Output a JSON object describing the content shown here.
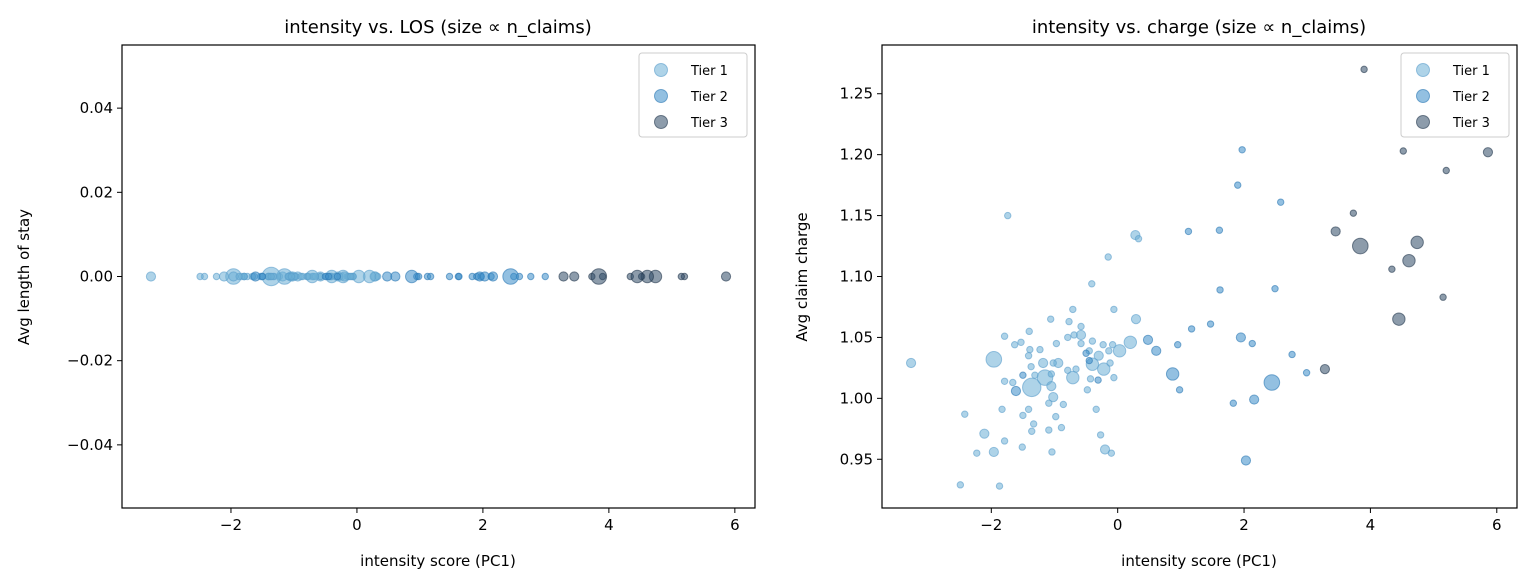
{
  "chart_data": [
    {
      "type": "scatter",
      "title": "intensity vs. LOS (size ∝ n_claims)",
      "xlabel": "intensity score (PC1)",
      "ylabel": "Avg length of stay",
      "xlim": [
        -3.73,
        6.32
      ],
      "ylim": [
        -0.055,
        0.055
      ],
      "xticks": [
        "−2",
        "0",
        "2",
        "4",
        "6"
      ],
      "xtick_values": [
        -2,
        0,
        2,
        4,
        6
      ],
      "yticks": [
        "−0.04",
        "−0.02",
        "0.00",
        "0.02",
        "0.04"
      ],
      "ytick_values": [
        -0.04,
        -0.02,
        0,
        0.02,
        0.04
      ],
      "legend_position": "top-right",
      "y_source": "constant_zero"
    },
    {
      "type": "scatter",
      "title": "intensity vs. charge (size ∝ n_claims)",
      "xlabel": "intensity score (PC1)",
      "ylabel": "Avg claim charge",
      "xlim": [
        -3.73,
        6.32
      ],
      "ylim": [
        0.91,
        1.29
      ],
      "xticks": [
        "−2",
        "0",
        "2",
        "4",
        "6"
      ],
      "xtick_values": [
        -2,
        0,
        2,
        4,
        6
      ],
      "yticks": [
        "0.95",
        "1.00",
        "1.05",
        "1.10",
        "1.15",
        "1.20",
        "1.25"
      ],
      "ytick_values": [
        0.95,
        1.0,
        1.05,
        1.1,
        1.15,
        1.2,
        1.25
      ],
      "legend_position": "top-right"
    }
  ],
  "legend": [
    {
      "name": "Tier 1",
      "color": "#6baed6"
    },
    {
      "name": "Tier 2",
      "color": "#3a8cc8"
    },
    {
      "name": "Tier 3",
      "color": "#2f4b66"
    }
  ],
  "points": {
    "Tier 1": [
      [
        -3.27,
        1.029,
        2
      ],
      [
        -1.96,
        1.032,
        4
      ],
      [
        -1.74,
        1.15,
        1
      ],
      [
        0.28,
        1.134,
        2
      ],
      [
        0.33,
        1.131,
        1
      ],
      [
        -0.15,
        1.116,
        1
      ],
      [
        -0.41,
        1.094,
        1
      ],
      [
        -0.71,
        1.073,
        1
      ],
      [
        -0.06,
        1.073,
        1
      ],
      [
        0.29,
        1.065,
        2
      ],
      [
        -1.06,
        1.065,
        1
      ],
      [
        -0.77,
        1.063,
        1
      ],
      [
        -0.58,
        1.059,
        1
      ],
      [
        -1.4,
        1.055,
        1
      ],
      [
        -1.79,
        1.051,
        1
      ],
      [
        -0.79,
        1.05,
        1
      ],
      [
        -0.58,
        1.052,
        2
      ],
      [
        -0.69,
        1.052,
        1
      ],
      [
        0.2,
        1.046,
        3
      ],
      [
        -1.53,
        1.046,
        1
      ],
      [
        -1.63,
        1.044,
        1
      ],
      [
        -0.97,
        1.045,
        1
      ],
      [
        -0.58,
        1.045,
        1
      ],
      [
        -0.4,
        1.047,
        1
      ],
      [
        -0.23,
        1.044,
        1
      ],
      [
        -0.08,
        1.044,
        1
      ],
      [
        0.03,
        1.039,
        3
      ],
      [
        -1.39,
        1.04,
        1
      ],
      [
        -1.23,
        1.04,
        1
      ],
      [
        -1.41,
        1.035,
        1
      ],
      [
        -0.45,
        1.039,
        1
      ],
      [
        -0.3,
        1.035,
        2
      ],
      [
        -0.14,
        1.039,
        1
      ],
      [
        -1.18,
        1.029,
        2
      ],
      [
        -0.94,
        1.029,
        2
      ],
      [
        -1.02,
        1.029,
        1
      ],
      [
        -1.37,
        1.026,
        1
      ],
      [
        -0.4,
        1.028,
        3
      ],
      [
        -0.22,
        1.024,
        3
      ],
      [
        -0.12,
        1.029,
        1
      ],
      [
        -0.79,
        1.023,
        1
      ],
      [
        -0.66,
        1.024,
        1
      ],
      [
        -1.31,
        1.019,
        1
      ],
      [
        -1.15,
        1.017,
        4
      ],
      [
        -1.05,
        1.02,
        1
      ],
      [
        -0.71,
        1.017,
        3
      ],
      [
        -0.43,
        1.016,
        1
      ],
      [
        -0.06,
        1.017,
        1
      ],
      [
        -1.79,
        1.014,
        1
      ],
      [
        -1.66,
        1.013,
        1
      ],
      [
        -1.36,
        1.009,
        5
      ],
      [
        -1.05,
        1.01,
        2
      ],
      [
        -0.48,
        1.007,
        1
      ],
      [
        -1.02,
        1.001,
        2
      ],
      [
        -1.09,
        0.996,
        1
      ],
      [
        -0.86,
        0.995,
        1
      ],
      [
        -1.83,
        0.991,
        1
      ],
      [
        -1.41,
        0.991,
        1
      ],
      [
        -0.34,
        0.991,
        1
      ],
      [
        -2.42,
        0.987,
        1
      ],
      [
        -1.5,
        0.986,
        1
      ],
      [
        -0.98,
        0.985,
        1
      ],
      [
        -1.33,
        0.979,
        1
      ],
      [
        -2.11,
        0.971,
        2
      ],
      [
        -0.89,
        0.976,
        1
      ],
      [
        -1.09,
        0.974,
        1
      ],
      [
        -1.36,
        0.973,
        1
      ],
      [
        -0.27,
        0.97,
        1
      ],
      [
        -1.79,
        0.965,
        1
      ],
      [
        -1.51,
        0.96,
        1
      ],
      [
        -0.2,
        0.958,
        2
      ],
      [
        -0.1,
        0.955,
        1
      ],
      [
        -2.23,
        0.955,
        1
      ],
      [
        -1.96,
        0.956,
        2
      ],
      [
        -1.04,
        0.956,
        1
      ],
      [
        -2.49,
        0.929,
        1
      ],
      [
        -1.87,
        0.928,
        1
      ]
    ],
    "Tier 2": [
      [
        1.97,
        1.204,
        1
      ],
      [
        1.9,
        1.175,
        1
      ],
      [
        2.58,
        1.161,
        1
      ],
      [
        1.12,
        1.137,
        1
      ],
      [
        1.61,
        1.138,
        1
      ],
      [
        1.62,
        1.089,
        1
      ],
      [
        2.49,
        1.09,
        1
      ],
      [
        1.47,
        1.061,
        1
      ],
      [
        1.17,
        1.057,
        1
      ],
      [
        0.48,
        1.048,
        2
      ],
      [
        0.61,
        1.039,
        2
      ],
      [
        0.95,
        1.044,
        1
      ],
      [
        1.95,
        1.05,
        2
      ],
      [
        2.13,
        1.045,
        1
      ],
      [
        2.76,
        1.036,
        1
      ],
      [
        0.87,
        1.02,
        3
      ],
      [
        0.98,
        1.007,
        1
      ],
      [
        2.44,
        1.013,
        4
      ],
      [
        2.99,
        1.021,
        1
      ],
      [
        1.83,
        0.996,
        1
      ],
      [
        2.16,
        0.999,
        2
      ],
      [
        2.03,
        0.949,
        2
      ],
      [
        -0.5,
        1.037,
        1
      ],
      [
        -1.5,
        1.019,
        1
      ],
      [
        -0.31,
        1.015,
        1
      ],
      [
        -1.61,
        1.006,
        2
      ],
      [
        -0.45,
        1.031,
        1
      ]
    ],
    "Tier 3": [
      [
        3.9,
        1.27,
        1
      ],
      [
        4.52,
        1.203,
        1
      ],
      [
        5.86,
        1.202,
        2
      ],
      [
        5.2,
        1.187,
        1
      ],
      [
        3.73,
        1.152,
        1
      ],
      [
        3.45,
        1.137,
        2
      ],
      [
        3.84,
        1.125,
        4
      ],
      [
        4.74,
        1.128,
        3
      ],
      [
        4.61,
        1.113,
        3
      ],
      [
        4.34,
        1.106,
        1
      ],
      [
        5.15,
        1.083,
        1
      ],
      [
        4.45,
        1.065,
        3
      ],
      [
        3.28,
        1.024,
        2
      ]
    ]
  }
}
